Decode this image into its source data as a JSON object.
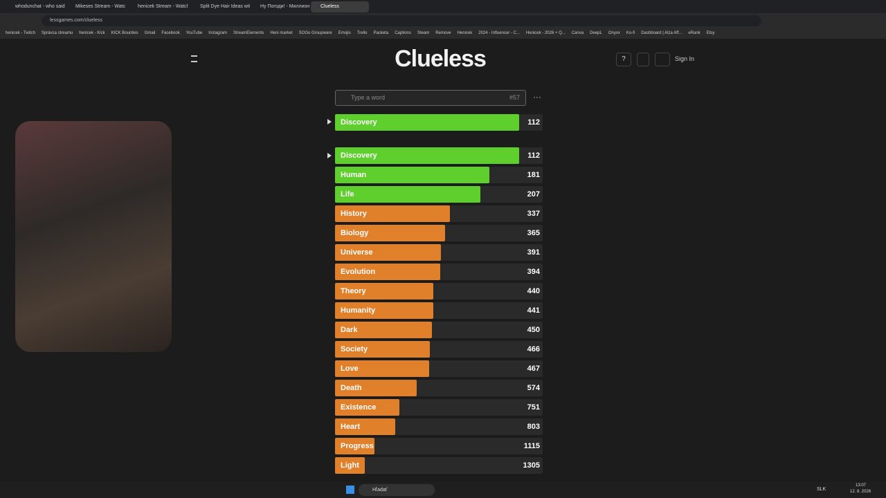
{
  "browser": {
    "tabs": [
      "whodunchat - who said it",
      "Mikeses Stream - Watch L",
      "henicek Stream - Watch L",
      "Split Dye Hair Ideas with",
      "Ну Погоди! - Миллион А",
      "Clueless"
    ],
    "url": "lessgames.com/clueless",
    "bookmarks": [
      "henicek - Twitch",
      "Správca streamu",
      "henicek - Kick",
      "KICK Bounties",
      "Gmail",
      "Facebook",
      "YouTube",
      "Instagram",
      "StreamElements",
      "Heni market",
      "SOGo Groupware",
      "Emojis",
      "Trello",
      "Packeta",
      "Captions",
      "Steam",
      "Remove",
      "Henicek",
      "2024 - Influencer - C...",
      "Henicek - 2026 + Q...",
      "Canva",
      "DeepL",
      "Onyxx",
      "Ko-fi",
      "Dashboard | Alza Aff...",
      "eRank",
      "Etsy"
    ]
  },
  "page": {
    "logo": "Clueless",
    "sign_in": "Sign In",
    "search_placeholder": "Type a word",
    "guess_count": "#57",
    "last_guess": {
      "word": "Discovery",
      "rank": 112
    },
    "guesses": [
      {
        "word": "Discovery",
        "rank": 112
      },
      {
        "word": "Human",
        "rank": 181
      },
      {
        "word": "Life",
        "rank": 207
      },
      {
        "word": "History",
        "rank": 337
      },
      {
        "word": "Biology",
        "rank": 365
      },
      {
        "word": "Universe",
        "rank": 391
      },
      {
        "word": "Evolution",
        "rank": 394
      },
      {
        "word": "Theory",
        "rank": 440
      },
      {
        "word": "Humanity",
        "rank": 441
      },
      {
        "word": "Dark",
        "rank": 450
      },
      {
        "word": "Society",
        "rank": 466
      },
      {
        "word": "Love",
        "rank": 467
      },
      {
        "word": "Death",
        "rank": 574
      },
      {
        "word": "Existence",
        "rank": 751
      },
      {
        "word": "Heart",
        "rank": 803
      },
      {
        "word": "Progress",
        "rank": 1115
      },
      {
        "word": "Light",
        "rank": 1305
      }
    ]
  },
  "taskbar": {
    "search": "Hľadať",
    "language": "SLK",
    "time": "13:07",
    "date": "12. 8. 2026"
  }
}
